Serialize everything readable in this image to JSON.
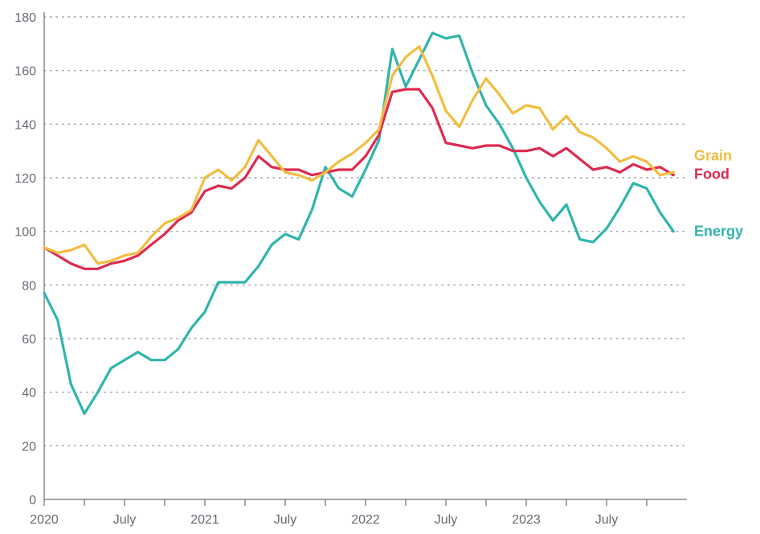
{
  "chart_data": {
    "type": "line",
    "title": "",
    "xlabel": "",
    "ylabel": "",
    "ylim": [
      0,
      180
    ],
    "yticks": [
      0,
      20,
      40,
      60,
      80,
      100,
      120,
      140,
      160,
      180
    ],
    "grid": "horizontal dotted",
    "legend": "direct labels at right end of lines",
    "x_start": "2020-01",
    "x_end": "2023-12",
    "x_tick_months": [
      "2020-01",
      "2020-04",
      "2020-07",
      "2020-10",
      "2021-01",
      "2021-04",
      "2021-07",
      "2021-10",
      "2022-01",
      "2022-04",
      "2022-07",
      "2022-10",
      "2023-01",
      "2023-04",
      "2023-07",
      "2023-10"
    ],
    "x_tick_labels": [
      {
        "month": "2020-01",
        "label": "2020"
      },
      {
        "month": "2020-07",
        "label": "July"
      },
      {
        "month": "2021-01",
        "label": "2021"
      },
      {
        "month": "2021-07",
        "label": "July"
      },
      {
        "month": "2022-01",
        "label": "2022"
      },
      {
        "month": "2022-07",
        "label": "July"
      },
      {
        "month": "2023-01",
        "label": "2023"
      },
      {
        "month": "2023-07",
        "label": "July"
      }
    ],
    "series": [
      {
        "name": "Grain",
        "color": "#f2bd3f",
        "x": [
          "2020-01",
          "2020-02",
          "2020-03",
          "2020-04",
          "2020-05",
          "2020-06",
          "2020-07",
          "2020-08",
          "2020-09",
          "2020-10",
          "2020-11",
          "2020-12",
          "2021-01",
          "2021-02",
          "2021-03",
          "2021-04",
          "2021-05",
          "2021-06",
          "2021-07",
          "2021-08",
          "2021-09",
          "2021-10",
          "2021-11",
          "2021-12",
          "2022-01",
          "2022-02",
          "2022-03",
          "2022-04",
          "2022-05",
          "2022-06",
          "2022-07",
          "2022-08",
          "2022-09",
          "2022-10",
          "2022-11",
          "2022-12",
          "2023-01",
          "2023-02",
          "2023-03",
          "2023-04",
          "2023-05",
          "2023-06",
          "2023-07",
          "2023-08",
          "2023-09",
          "2023-10",
          "2023-11",
          "2023-12"
        ],
        "values": [
          94,
          92,
          93,
          95,
          88,
          89,
          91,
          92,
          98,
          103,
          105,
          108,
          120,
          123,
          119,
          124,
          134,
          128,
          122,
          121,
          119,
          122,
          126,
          129,
          133,
          138,
          158,
          165,
          169,
          158,
          145,
          139,
          149,
          157,
          151,
          144,
          147,
          146,
          138,
          143,
          137,
          135,
          131,
          126,
          128,
          126,
          121,
          122
        ]
      },
      {
        "name": "Food",
        "color": "#dc2a50",
        "x": [
          "2020-01",
          "2020-02",
          "2020-03",
          "2020-04",
          "2020-05",
          "2020-06",
          "2020-07",
          "2020-08",
          "2020-09",
          "2020-10",
          "2020-11",
          "2020-12",
          "2021-01",
          "2021-02",
          "2021-03",
          "2021-04",
          "2021-05",
          "2021-06",
          "2021-07",
          "2021-08",
          "2021-09",
          "2021-10",
          "2021-11",
          "2021-12",
          "2022-01",
          "2022-02",
          "2022-03",
          "2022-04",
          "2022-05",
          "2022-06",
          "2022-07",
          "2022-08",
          "2022-09",
          "2022-10",
          "2022-11",
          "2022-12",
          "2023-01",
          "2023-02",
          "2023-03",
          "2023-04",
          "2023-05",
          "2023-06",
          "2023-07",
          "2023-08",
          "2023-09",
          "2023-10",
          "2023-11",
          "2023-12"
        ],
        "values": [
          94,
          91,
          88,
          86,
          86,
          88,
          89,
          91,
          95,
          99,
          104,
          107,
          115,
          117,
          116,
          120,
          128,
          124,
          123,
          123,
          121,
          122,
          123,
          123,
          128,
          136,
          152,
          153,
          153,
          146,
          133,
          132,
          131,
          132,
          132,
          130,
          130,
          131,
          128,
          131,
          127,
          123,
          124,
          122,
          125,
          123,
          124,
          121
        ]
      },
      {
        "name": "Energy",
        "color": "#2fb5ac",
        "x": [
          "2020-01",
          "2020-02",
          "2020-03",
          "2020-04",
          "2020-05",
          "2020-06",
          "2020-07",
          "2020-08",
          "2020-09",
          "2020-10",
          "2020-11",
          "2020-12",
          "2021-01",
          "2021-02",
          "2021-03",
          "2021-04",
          "2021-05",
          "2021-06",
          "2021-07",
          "2021-08",
          "2021-09",
          "2021-10",
          "2021-11",
          "2021-12",
          "2022-01",
          "2022-02",
          "2022-03",
          "2022-04",
          "2022-05",
          "2022-06",
          "2022-07",
          "2022-08",
          "2022-09",
          "2022-10",
          "2022-11",
          "2022-12",
          "2023-01",
          "2023-02",
          "2023-03",
          "2023-04",
          "2023-05",
          "2023-06",
          "2023-07",
          "2023-08",
          "2023-09",
          "2023-10",
          "2023-11",
          "2023-12"
        ],
        "values": [
          77,
          67,
          43,
          32,
          40,
          49,
          52,
          55,
          52,
          52,
          56,
          64,
          70,
          81,
          81,
          81,
          87,
          95,
          99,
          97,
          108,
          124,
          116,
          113,
          123,
          134,
          168,
          154,
          164,
          174,
          172,
          173,
          159,
          147,
          140,
          131,
          120,
          111,
          104,
          110,
          97,
          96,
          101,
          109,
          118,
          116,
          107,
          100
        ]
      }
    ]
  }
}
